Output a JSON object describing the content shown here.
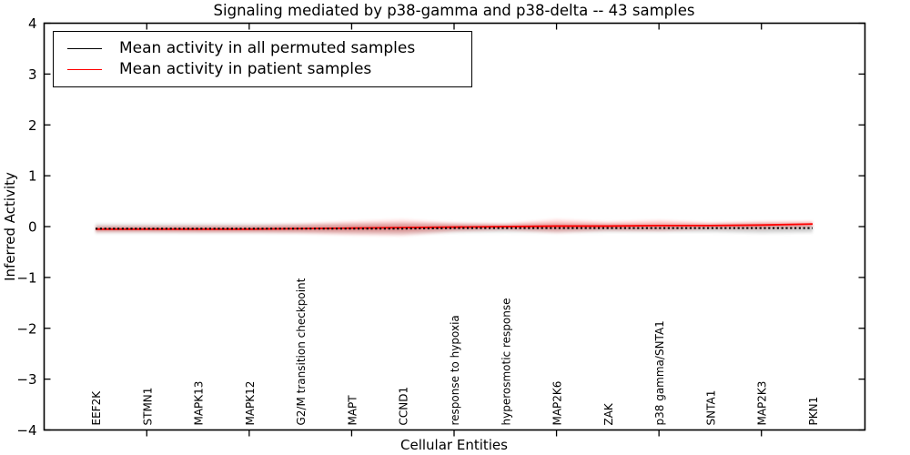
{
  "title": "Signaling mediated by p38-gamma and p38-delta -- 43 samples",
  "xlabel": "Cellular Entities",
  "ylabel": "Inferred Activity",
  "legend": {
    "items": [
      {
        "label": "Mean activity in all permuted samples",
        "color": "#000000"
      },
      {
        "label": "Mean activity in patient samples",
        "color": "#ff0000"
      }
    ]
  },
  "chart_data": {
    "type": "line",
    "title": "Signaling mediated by p38-gamma and p38-delta -- 43 samples",
    "xlabel": "Cellular Entities",
    "ylabel": "Inferred Activity",
    "ylim": [
      -4,
      4
    ],
    "yticks": [
      -4,
      -3,
      -2,
      -1,
      0,
      1,
      2,
      3,
      4
    ],
    "x_major_tick_indices": [
      1,
      3,
      5,
      7,
      9,
      11,
      13
    ],
    "grid": false,
    "legend_position": "upper left",
    "categories": [
      "EEF2K",
      "STMN1",
      "MAPK13",
      "MAPK12",
      "G2/M transition checkpoint",
      "MAPT",
      "CCND1",
      "response to hypoxia",
      "hyperosmotic response",
      "MAP2K6",
      "ZAK",
      "p38 gamma/SNTA1",
      "SNTA1",
      "MAP2K3",
      "PKN1"
    ],
    "series": [
      {
        "name": "Mean activity in all permuted samples",
        "color": "#000000",
        "style": "dotted",
        "values": [
          -0.04,
          -0.04,
          -0.04,
          -0.04,
          -0.04,
          -0.04,
          -0.04,
          -0.03,
          -0.03,
          -0.03,
          -0.03,
          -0.03,
          -0.03,
          -0.03,
          -0.03
        ],
        "band_halfwidth": [
          0.08,
          0.08,
          0.08,
          0.08,
          0.08,
          0.09,
          0.1,
          0.08,
          0.07,
          0.08,
          0.07,
          0.07,
          0.07,
          0.09,
          0.08
        ],
        "band_color": "rgba(0,0,0,0.10)"
      },
      {
        "name": "Mean activity in patient samples",
        "color": "#ff0000",
        "style": "solid",
        "values": [
          -0.05,
          -0.05,
          -0.05,
          -0.05,
          -0.04,
          -0.03,
          -0.02,
          -0.01,
          0.0,
          0.01,
          0.01,
          0.02,
          0.02,
          0.03,
          0.05
        ],
        "band_halfwidth": [
          0.05,
          0.05,
          0.06,
          0.06,
          0.08,
          0.11,
          0.13,
          0.07,
          0.05,
          0.11,
          0.07,
          0.09,
          0.05,
          0.06,
          0.05
        ],
        "band_color": "rgba(255,0,0,0.13)"
      }
    ]
  }
}
